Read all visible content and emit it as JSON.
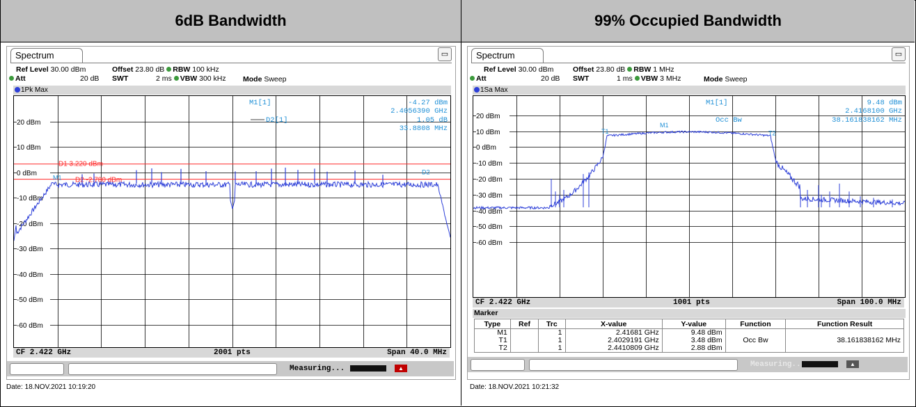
{
  "headers": {
    "left": "6dB Bandwidth",
    "right": "99% Occupied Bandwidth"
  },
  "left": {
    "tab": "Spectrum",
    "ref_level_label": "Ref Level",
    "ref_level": "30.00 dBm",
    "offset_label": "Offset",
    "offset": "23.80 dB",
    "rbw_label": "RBW",
    "rbw": "100 kHz",
    "att_label": "Att",
    "att": "20 dB",
    "swt_label": "SWT",
    "swt": "2 ms",
    "vbw_label": "VBW",
    "vbw": "300 kHz",
    "mode_label": "Mode",
    "mode": "Sweep",
    "trace": "1Pk Max",
    "m1_label": "M1[1]",
    "m1_level": "-4.27 dBm",
    "m1_freq": "2.4056390 GHz",
    "d2_label": "D2[1]",
    "d2_level": "1.05 dB",
    "d2_freq": "33.8808 MHz",
    "d1_line": "D1  3.220 dBm",
    "d2_line": "D2  -2.780 dBm",
    "y_labels": [
      "20 dBm",
      "10 dBm",
      "0 dBm",
      "-10 dBm",
      "-20 dBm",
      "-30 dBm",
      "-40 dBm",
      "-50 dBm",
      "-60 dBm"
    ],
    "cf": "CF 2.422 GHz",
    "pts": "2001 pts",
    "span": "Span 40.0 MHz",
    "status": "Measuring...",
    "date": "Date: 18.NOV.2021  10:19:20"
  },
  "right": {
    "tab": "Spectrum",
    "ref_level_label": "Ref Level",
    "ref_level": "30.00 dBm",
    "offset_label": "Offset",
    "offset": "23.80 dB",
    "rbw_label": "RBW",
    "rbw": "1 MHz",
    "att_label": "Att",
    "att": "20 dB",
    "swt_label": "SWT",
    "swt": "1 ms",
    "vbw_label": "VBW",
    "vbw": "3 MHz",
    "mode_label": "Mode",
    "mode": "Sweep",
    "trace": "1Sa Max",
    "m1_label": "M1[1]",
    "m1_level": "9.48 dBm",
    "m1_freq": "2.4168100 GHz",
    "occ_label": "Occ Bw",
    "occ_value": "38.161838162 MHz",
    "y_labels": [
      "20 dBm",
      "10 dBm",
      "0 dBm",
      "-10 dBm",
      "-20 dBm",
      "-30 dBm",
      "-40 dBm",
      "-50 dBm",
      "-60 dBm"
    ],
    "cf": "CF 2.422 GHz",
    "pts": "1001 pts",
    "span": "Span 100.0 MHz",
    "marker_title": "Marker",
    "table_headers": [
      "Type",
      "Ref",
      "Trc",
      "X-value",
      "Y-value",
      "Function",
      "Function Result"
    ],
    "table_rows": [
      [
        "M1",
        "",
        "1",
        "2.41681 GHz",
        "9.48 dBm",
        "",
        ""
      ],
      [
        "T1",
        "",
        "1",
        "2.4029191 GHz",
        "3.48 dBm",
        "Occ Bw",
        "38.161838162 MHz"
      ],
      [
        "T2",
        "",
        "1",
        "2.4410809 GHz",
        "2.88 dBm",
        "",
        ""
      ]
    ],
    "status": "Measuring...",
    "date": "Date: 18.NOV.2021  10:21:32"
  },
  "colors": {
    "trace": "#2d3fd8",
    "display_line": "#ff2a2a",
    "marker_text": "#1e8fd6",
    "header_bg": "#c0c0c0"
  }
}
